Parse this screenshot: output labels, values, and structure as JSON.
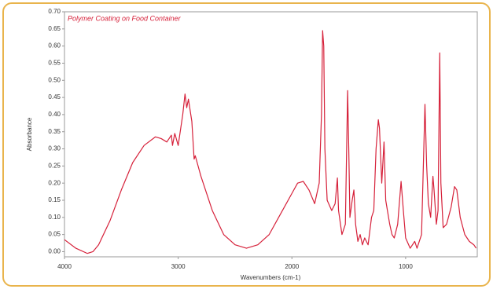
{
  "chart_data": {
    "type": "line",
    "title": "Polymer Coating on Food Container",
    "x_label": "Wavenumbers (cm-1)",
    "y_label": "Absorbance",
    "xlim": [
      4000,
      370
    ],
    "ylim": [
      -0.015,
      0.7
    ],
    "xticks": [
      4000,
      3000,
      2000,
      1000
    ],
    "yticks": [
      {
        "value": 0,
        "label": "0.00"
      },
      0.05,
      {
        "value": 0.1,
        "label": "0.10"
      },
      0.15,
      {
        "value": 0.2,
        "label": "0.20"
      },
      0.25,
      {
        "value": 0.3,
        "label": "0.30"
      },
      0.35,
      {
        "value": 0.4,
        "label": "0.40"
      },
      0.45,
      {
        "value": 0.5,
        "label": "0.50"
      },
      0.55,
      {
        "value": 0.6,
        "label": "0.60"
      },
      0.65,
      {
        "value": 0.7,
        "label": "0.70"
      }
    ],
    "grid": false,
    "x": [
      4000,
      3900,
      3800,
      3750,
      3700,
      3600,
      3500,
      3400,
      3300,
      3200,
      3150,
      3100,
      3060,
      3050,
      3030,
      3000,
      2960,
      2940,
      2925,
      2910,
      2880,
      2860,
      2850,
      2800,
      2700,
      2600,
      2500,
      2400,
      2300,
      2200,
      2100,
      2000,
      1950,
      1900,
      1850,
      1800,
      1760,
      1740,
      1730,
      1720,
      1710,
      1690,
      1650,
      1620,
      1600,
      1590,
      1560,
      1530,
      1510,
      1500,
      1490,
      1470,
      1455,
      1440,
      1420,
      1400,
      1380,
      1360,
      1330,
      1300,
      1280,
      1260,
      1240,
      1230,
      1210,
      1190,
      1175,
      1160,
      1140,
      1120,
      1100,
      1070,
      1040,
      1020,
      1000,
      960,
      920,
      900,
      860,
      830,
      815,
      800,
      780,
      760,
      750,
      730,
      715,
      700,
      690,
      670,
      640,
      600,
      570,
      550,
      520,
      480,
      440,
      400,
      380
    ],
    "series": [
      {
        "color": "#d6213a",
        "values": [
          0.035,
          0.01,
          -0.005,
          0.0,
          0.02,
          0.09,
          0.18,
          0.26,
          0.31,
          0.335,
          0.33,
          0.32,
          0.34,
          0.31,
          0.345,
          0.31,
          0.4,
          0.46,
          0.42,
          0.445,
          0.38,
          0.27,
          0.28,
          0.22,
          0.12,
          0.05,
          0.02,
          0.01,
          0.02,
          0.05,
          0.11,
          0.17,
          0.2,
          0.205,
          0.18,
          0.14,
          0.2,
          0.4,
          0.645,
          0.6,
          0.3,
          0.15,
          0.12,
          0.14,
          0.215,
          0.12,
          0.05,
          0.08,
          0.47,
          0.3,
          0.1,
          0.15,
          0.18,
          0.08,
          0.03,
          0.05,
          0.02,
          0.04,
          0.02,
          0.1,
          0.12,
          0.3,
          0.385,
          0.36,
          0.2,
          0.32,
          0.15,
          0.12,
          0.08,
          0.05,
          0.04,
          0.08,
          0.205,
          0.12,
          0.04,
          0.01,
          0.03,
          0.01,
          0.05,
          0.43,
          0.25,
          0.14,
          0.1,
          0.22,
          0.18,
          0.08,
          0.12,
          0.58,
          0.2,
          0.07,
          0.08,
          0.13,
          0.19,
          0.18,
          0.1,
          0.05,
          0.03,
          0.02,
          0.01
        ]
      }
    ]
  }
}
